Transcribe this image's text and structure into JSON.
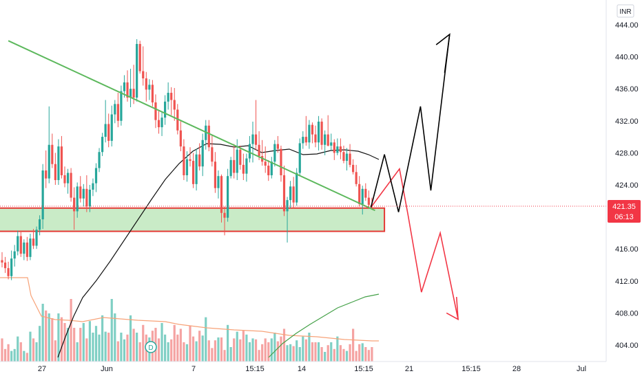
{
  "currency_label": "INR",
  "dividend_marker": "D",
  "price_tag": {
    "price": "421.35",
    "countdown": "06:13",
    "color": "#f23645"
  },
  "colors": {
    "up": "#26a69a",
    "down": "#ef5350",
    "vol_up": "#7fcfc4",
    "vol_down": "#f5a3a2",
    "trendline": "#5cb85c",
    "zone_fill": "#c9ebc7",
    "zone_stroke": "#e53935",
    "ma_dark": "#111111",
    "ma_green": "#43a047",
    "ma_orange": "#f7a278",
    "path_black": "#000000",
    "path_red": "#f23645"
  },
  "chart_data": {
    "type": "candlestick",
    "y_axis": {
      "ylim": [
        402.5,
        446.0
      ],
      "ticks": [
        "444.00",
        "440.00",
        "436.00",
        "432.00",
        "428.00",
        "424.00",
        "420.00",
        "416.00",
        "412.00",
        "408.00",
        "404.00"
      ]
    },
    "x_axis": {
      "ticks": [
        "27",
        "Jun",
        "7",
        "15:15",
        "14",
        "15:15",
        "21",
        "15:15",
        "28",
        "Jul"
      ]
    },
    "candles": [
      [
        414.6,
        415.6,
        413.7,
        414.3
      ],
      [
        414.3,
        415.0,
        413.0,
        413.6
      ],
      [
        413.6,
        414.4,
        412.2,
        412.6
      ],
      [
        412.6,
        415.8,
        412.1,
        414.8
      ],
      [
        414.8,
        416.5,
        413.8,
        415.7
      ],
      [
        415.7,
        418.3,
        415.2,
        417.6
      ],
      [
        417.6,
        418.3,
        415.0,
        415.4
      ],
      [
        415.4,
        417.2,
        414.6,
        416.8
      ],
      [
        416.8,
        417.5,
        414.5,
        415.0
      ],
      [
        415.0,
        417.9,
        414.6,
        417.3
      ],
      [
        417.3,
        418.5,
        416.0,
        416.4
      ],
      [
        416.4,
        418.8,
        416.0,
        418.4
      ],
      [
        418.4,
        420.2,
        417.7,
        419.7
      ],
      [
        419.7,
        426.6,
        418.5,
        425.8
      ],
      [
        425.8,
        428.3,
        423.6,
        424.8
      ],
      [
        424.8,
        433.8,
        424.2,
        429.0
      ],
      [
        429.0,
        430.4,
        426.1,
        426.6
      ],
      [
        426.6,
        428.0,
        424.0,
        424.6
      ],
      [
        424.6,
        429.7,
        424.0,
        428.8
      ],
      [
        428.8,
        430.1,
        424.8,
        425.2
      ],
      [
        425.2,
        426.3,
        423.7,
        424.2
      ],
      [
        424.2,
        426.0,
        422.9,
        425.5
      ],
      [
        425.5,
        426.1,
        421.9,
        422.4
      ],
      [
        422.4,
        423.7,
        418.4,
        420.7
      ],
      [
        420.7,
        424.3,
        419.9,
        423.8
      ],
      [
        423.8,
        425.1,
        421.8,
        422.3
      ],
      [
        422.3,
        424.1,
        421.3,
        423.5
      ],
      [
        423.5,
        425.2,
        420.6,
        421.3
      ],
      [
        421.3,
        424.0,
        420.6,
        423.4
      ],
      [
        423.4,
        424.8,
        422.6,
        424.2
      ],
      [
        424.2,
        426.7,
        423.1,
        426.1
      ],
      [
        426.1,
        428.6,
        425.6,
        428.1
      ],
      [
        428.1,
        430.5,
        427.6,
        430.0
      ],
      [
        430.0,
        434.6,
        429.3,
        431.6
      ],
      [
        431.6,
        432.9,
        428.7,
        429.5
      ],
      [
        429.5,
        433.9,
        428.8,
        432.8
      ],
      [
        432.8,
        434.6,
        431.7,
        434.1
      ],
      [
        434.1,
        435.5,
        431.2,
        432.0
      ],
      [
        432.0,
        436.4,
        431.4,
        435.7
      ],
      [
        435.7,
        437.7,
        434.9,
        436.8
      ],
      [
        436.8,
        438.3,
        434.4,
        434.9
      ],
      [
        434.9,
        438.5,
        433.7,
        436.0
      ],
      [
        436.0,
        439.0,
        434.1,
        434.9
      ],
      [
        434.9,
        442.2,
        434.4,
        441.6
      ],
      [
        441.6,
        442.0,
        437.9,
        438.2
      ],
      [
        438.2,
        441.3,
        436.4,
        437.3
      ],
      [
        437.3,
        438.1,
        434.4,
        435.9
      ],
      [
        435.9,
        437.2,
        434.6,
        436.5
      ],
      [
        436.5,
        437.1,
        433.8,
        434.3
      ],
      [
        434.3,
        435.3,
        431.1,
        432.1
      ],
      [
        432.1,
        433.3,
        430.4,
        431.2
      ],
      [
        431.2,
        433.1,
        430.1,
        432.4
      ],
      [
        432.4,
        435.2,
        431.5,
        434.4
      ],
      [
        434.4,
        436.8,
        433.4,
        435.5
      ],
      [
        435.5,
        436.2,
        432.7,
        434.6
      ],
      [
        434.6,
        436.1,
        432.0,
        433.4
      ],
      [
        433.4,
        434.1,
        430.3,
        430.8
      ],
      [
        430.8,
        432.0,
        428.2,
        428.8
      ],
      [
        428.8,
        429.7,
        424.6,
        425.2
      ],
      [
        425.2,
        428.2,
        424.4,
        427.2
      ],
      [
        427.2,
        428.7,
        426.3,
        427.0
      ],
      [
        427.0,
        428.0,
        423.6,
        424.1
      ],
      [
        424.1,
        428.5,
        423.3,
        427.8
      ],
      [
        427.8,
        429.2,
        425.8,
        426.3
      ],
      [
        426.3,
        430.4,
        425.1,
        429.6
      ],
      [
        429.6,
        432.1,
        428.4,
        431.4
      ],
      [
        431.4,
        432.1,
        428.2,
        428.7
      ],
      [
        428.7,
        430.3,
        426.3,
        426.9
      ],
      [
        426.9,
        428.1,
        423.0,
        423.6
      ],
      [
        423.6,
        425.8,
        422.3,
        425.1
      ],
      [
        425.1,
        425.3,
        419.3,
        420.5
      ],
      [
        420.5,
        421.3,
        417.7,
        419.9
      ],
      [
        419.9,
        426.0,
        419.4,
        425.1
      ],
      [
        425.1,
        427.5,
        424.8,
        427.1
      ],
      [
        427.1,
        429.1,
        424.8,
        425.5
      ],
      [
        425.5,
        429.7,
        424.6,
        428.4
      ],
      [
        428.4,
        428.9,
        425.9,
        426.5
      ],
      [
        426.5,
        427.9,
        424.6,
        425.4
      ],
      [
        425.4,
        427.9,
        424.4,
        427.3
      ],
      [
        427.3,
        430.1,
        426.8,
        429.1
      ],
      [
        429.1,
        431.9,
        426.8,
        430.3
      ],
      [
        430.3,
        434.6,
        428.3,
        429.0
      ],
      [
        429.0,
        430.7,
        427.1,
        427.6
      ],
      [
        427.6,
        429.6,
        426.4,
        426.9
      ],
      [
        426.9,
        428.8,
        425.5,
        426.4
      ],
      [
        426.4,
        427.1,
        424.5,
        425.2
      ],
      [
        425.2,
        427.5,
        424.8,
        426.9
      ],
      [
        426.9,
        429.6,
        426.3,
        429.1
      ],
      [
        429.1,
        430.1,
        428.0,
        428.5
      ],
      [
        428.5,
        428.9,
        424.4,
        425.2
      ],
      [
        425.2,
        426.4,
        420.1,
        420.7
      ],
      [
        420.7,
        422.5,
        416.8,
        422.1
      ],
      [
        422.1,
        424.5,
        421.1,
        423.8
      ],
      [
        423.8,
        425.0,
        421.1,
        421.8
      ],
      [
        421.8,
        426.1,
        421.4,
        425.5
      ],
      [
        425.5,
        429.8,
        425.1,
        429.2
      ],
      [
        429.2,
        430.7,
        428.5,
        430.0
      ],
      [
        430.0,
        432.6,
        428.9,
        429.3
      ],
      [
        429.3,
        432.1,
        428.5,
        431.5
      ],
      [
        431.5,
        431.8,
        429.2,
        430.3
      ],
      [
        430.3,
        431.4,
        428.7,
        429.3
      ],
      [
        429.3,
        432.6,
        428.3,
        431.9
      ],
      [
        431.9,
        432.3,
        428.4,
        429.0
      ],
      [
        429.0,
        430.8,
        427.7,
        430.3
      ],
      [
        430.3,
        432.7,
        428.8,
        428.9
      ],
      [
        428.9,
        430.4,
        428.3,
        429.3
      ],
      [
        429.3,
        429.7,
        427.1,
        428.0
      ],
      [
        428.0,
        429.8,
        427.7,
        428.8
      ],
      [
        428.8,
        429.8,
        427.2,
        428.1
      ],
      [
        428.1,
        428.9,
        426.7,
        427.0
      ],
      [
        427.0,
        428.6,
        425.8,
        427.9
      ],
      [
        427.9,
        429.1,
        426.2,
        426.5
      ],
      [
        426.5,
        427.2,
        425.3,
        425.6
      ],
      [
        425.6,
        426.5,
        423.8,
        424.1
      ],
      [
        424.1,
        425.1,
        421.3,
        421.6
      ],
      [
        421.6,
        423.9,
        420.3,
        423.5
      ],
      [
        423.5,
        424.2,
        422.0,
        422.4
      ],
      [
        422.4,
        423.3,
        421.0,
        421.5
      ],
      [
        421.5,
        422.4,
        421.0,
        421.35
      ]
    ],
    "volume": [
      24,
      13,
      18,
      11,
      13,
      26,
      20,
      11,
      9,
      31,
      24,
      20,
      37,
      60,
      53,
      50,
      45,
      22,
      50,
      46,
      40,
      35,
      65,
      35,
      20,
      35,
      40,
      24,
      42,
      30,
      37,
      28,
      48,
      31,
      30,
      65,
      50,
      21,
      30,
      23,
      28,
      48,
      34,
      30,
      20,
      38,
      28,
      25,
      32,
      35,
      24,
      40,
      28,
      20,
      23,
      38,
      28,
      34,
      20,
      18,
      37,
      26,
      21,
      32,
      27,
      46,
      22,
      14,
      22,
      25,
      25,
      12,
      38,
      15,
      24,
      31,
      23,
      32,
      28,
      20,
      24,
      23,
      12,
      18,
      24,
      20,
      24,
      30,
      21,
      26,
      34,
      17,
      18,
      16,
      22,
      15,
      26,
      23,
      30,
      20,
      20,
      20,
      15,
      10,
      17,
      20,
      13,
      26,
      17,
      13,
      11,
      18,
      34,
      11,
      18,
      19,
      15,
      12,
      15
    ],
    "ma_dark": [
      [
        84,
        520
      ],
      [
        95,
        490
      ],
      [
        107,
        460
      ],
      [
        120,
        433
      ],
      [
        140,
        408
      ],
      [
        160,
        380
      ],
      [
        180,
        350
      ],
      [
        200,
        320
      ],
      [
        220,
        290
      ],
      [
        240,
        261
      ],
      [
        260,
        238
      ],
      [
        280,
        220
      ],
      [
        300,
        209
      ],
      [
        320,
        210
      ],
      [
        340,
        214
      ],
      [
        360,
        212
      ],
      [
        380,
        222
      ],
      [
        400,
        219
      ],
      [
        420,
        217
      ],
      [
        440,
        225
      ],
      [
        460,
        224
      ],
      [
        480,
        219
      ],
      [
        500,
        218
      ],
      [
        520,
        220
      ],
      [
        535,
        225
      ],
      [
        550,
        232
      ]
    ],
    "ma_green": [
      [
        390,
        520
      ],
      [
        410,
        500
      ],
      [
        430,
        485
      ],
      [
        450,
        472
      ],
      [
        470,
        460
      ],
      [
        490,
        448
      ],
      [
        510,
        440
      ],
      [
        530,
        432
      ],
      [
        550,
        428
      ]
    ],
    "ma_orange": [
      [
        0,
        404
      ],
      [
        30,
        404
      ],
      [
        40,
        404
      ],
      [
        45,
        430
      ],
      [
        60,
        460
      ],
      [
        80,
        465
      ],
      [
        100,
        466
      ],
      [
        120,
        468
      ],
      [
        150,
        462
      ],
      [
        200,
        466
      ],
      [
        240,
        468
      ],
      [
        260,
        472
      ],
      [
        300,
        477
      ],
      [
        340,
        480
      ],
      [
        380,
        482
      ],
      [
        420,
        488
      ],
      [
        460,
        490
      ],
      [
        500,
        494
      ],
      [
        540,
        496
      ],
      [
        550,
        496
      ]
    ],
    "trendline": [
      [
        2.0,
        442.0
      ],
      [
        119.0,
        420.8
      ]
    ],
    "support_zone": {
      "x_range": [
        -1.0,
        122.0
      ],
      "y_range": [
        418.2,
        421.1
      ]
    },
    "paths": {
      "black": [
        [
          117.7,
          421.2
        ],
        [
          122.0,
          427.8
        ],
        [
          126.5,
          420.6
        ],
        [
          133.5,
          433.8
        ],
        [
          136.8,
          423.3
        ],
        [
          142.8,
          442.8
        ]
      ],
      "black_arrow": [
        [
          138.5,
          441.5
        ],
        [
          142.8,
          442.8
        ],
        [
          141.2,
          438.0
        ]
      ],
      "red_up": [
        [
          117.7,
          421.2
        ],
        [
          126.8,
          426.0
        ],
        [
          129.5,
          420.3
        ],
        [
          133.8,
          410.6
        ],
        [
          139.8,
          418.0
        ],
        [
          145.5,
          407.2
        ]
      ],
      "red_arrow": [
        [
          145.0,
          410.0
        ],
        [
          145.5,
          407.2
        ],
        [
          141.8,
          408.0
        ]
      ]
    }
  }
}
